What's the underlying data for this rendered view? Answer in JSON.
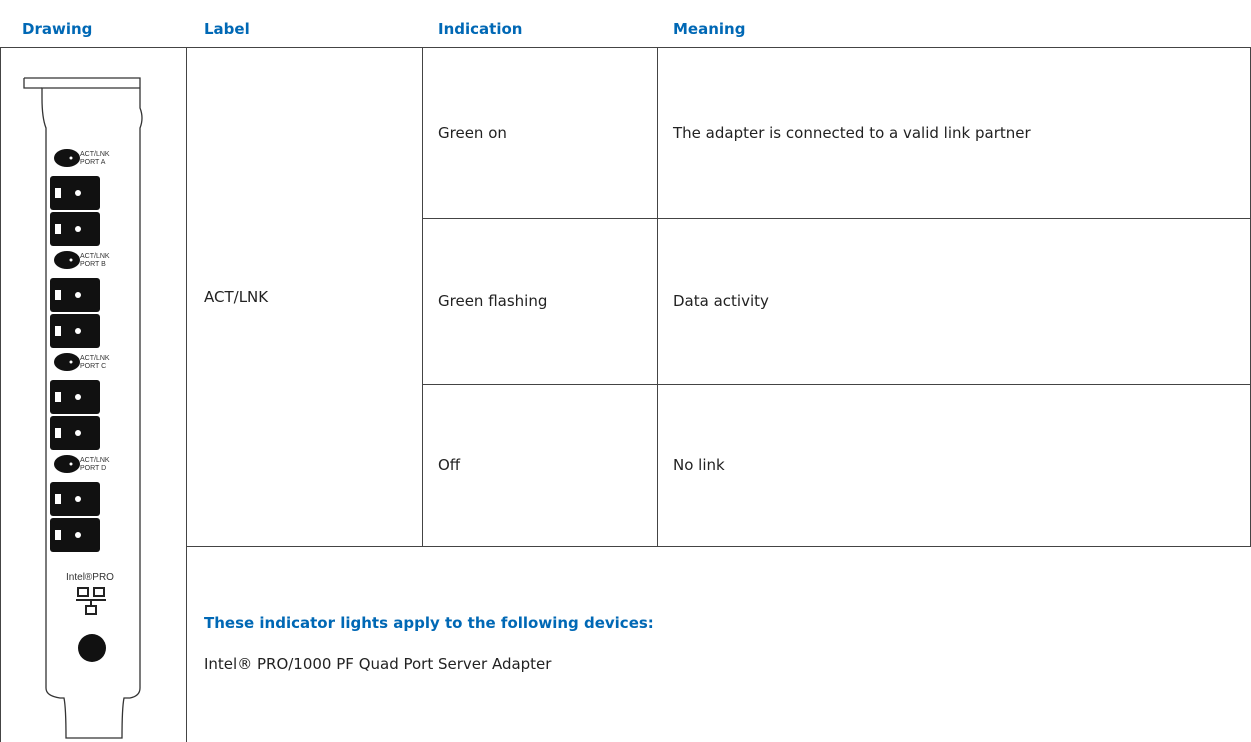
{
  "header": {
    "columns": [
      "Drawing",
      "Label",
      "Indication",
      "Meaning"
    ]
  },
  "drawing": {
    "port_labels": [
      [
        "ACT/LNK",
        "PORT A"
      ],
      [
        "ACT/LNK",
        "PORT B"
      ],
      [
        "ACT/LNK",
        "PORT C"
      ],
      [
        "ACT/LNK",
        "PORT D"
      ]
    ],
    "brand": "Intel®PRO"
  },
  "table": {
    "label": "ACT/LNK",
    "rows": [
      [
        "Green on",
        "The adapter is connected to a valid link partner"
      ],
      [
        "Green flashing",
        "Data activity"
      ],
      [
        "Off",
        "No link"
      ]
    ]
  },
  "note": {
    "heading": "These indicator lights apply to the following devices:",
    "devices": [
      "Intel® PRO/1000 PF Quad Port Server Adapter"
    ]
  }
}
